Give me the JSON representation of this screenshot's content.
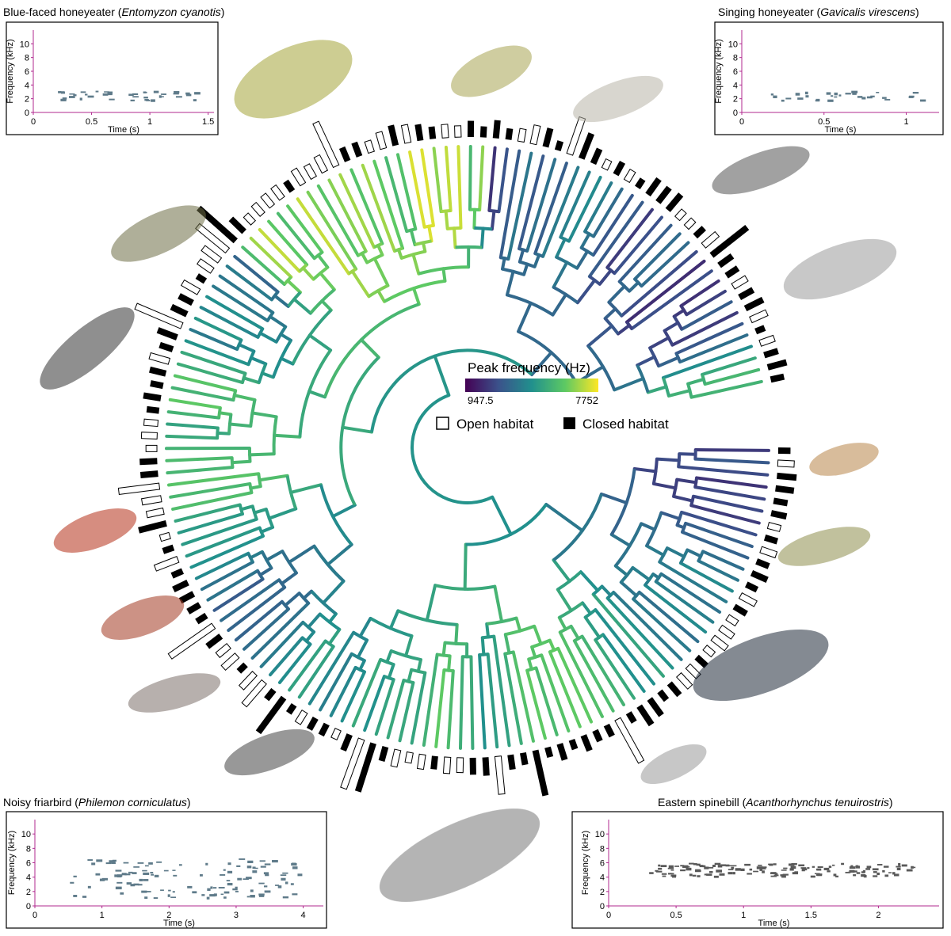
{
  "legend": {
    "colorbar_title": "Peak frequency (Hz)",
    "colorbar_min": "947.5",
    "colorbar_max": "7752",
    "open": "Open habitat",
    "closed": "Closed habitat"
  },
  "panels": [
    {
      "common_name": "Blue-faced honeyeater",
      "scientific_name": "Entomyzon cyanotis",
      "ylabel": "Frequency (kHz)",
      "xlabel": "Time (s)",
      "xlim": [
        0,
        1.55
      ],
      "ylim": [
        0,
        12
      ],
      "xticks": [
        0,
        0.5,
        1,
        1.5
      ],
      "yticks": [
        0,
        2,
        4,
        6,
        8,
        10
      ]
    },
    {
      "common_name": "Singing honeyeater",
      "scientific_name": "Gavicalis virescens",
      "ylabel": "Frequency (kHz)",
      "xlabel": "Time (s)",
      "xlim": [
        0,
        1.2
      ],
      "ylim": [
        0,
        12
      ],
      "xticks": [
        0,
        0.5,
        1
      ],
      "yticks": [
        0,
        2,
        4,
        6,
        8,
        10
      ]
    },
    {
      "common_name": "Noisy friarbird",
      "scientific_name": "Philemon corniculatus",
      "ylabel": "Frequency (kHz)",
      "xlabel": "Time (s)",
      "xlim": [
        0,
        4.3
      ],
      "ylim": [
        0,
        12
      ],
      "xticks": [
        0,
        1,
        2,
        3,
        4
      ],
      "yticks": [
        0,
        2,
        4,
        6,
        8,
        10
      ]
    },
    {
      "common_name": "Eastern spinebill",
      "scientific_name": "Acanthorhynchus tenuirostris",
      "ylabel": "Frequency (kHz)",
      "xlabel": "Time (s)",
      "xlim": [
        0,
        2.45
      ],
      "ylim": [
        0,
        12
      ],
      "xticks": [
        0,
        0.5,
        1,
        1.5,
        2
      ],
      "yticks": [
        0,
        2,
        4,
        6,
        8,
        10
      ]
    }
  ]
}
